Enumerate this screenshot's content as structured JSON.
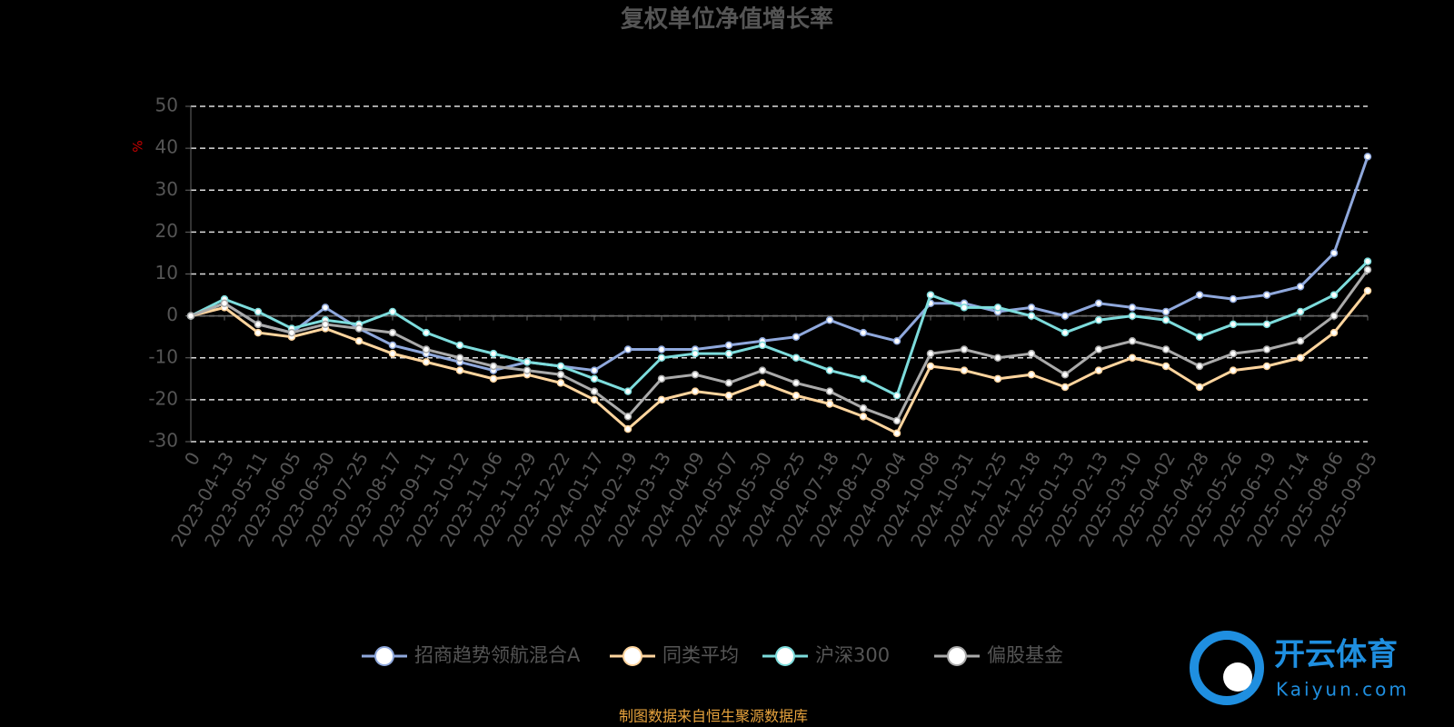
{
  "chart_data": {
    "type": "line",
    "title": "复权单位净值增长率",
    "y_axis_label": "%",
    "categories": [
      "0",
      "2023-04-13",
      "2023-05-11",
      "2023-06-05",
      "2023-06-30",
      "2023-07-25",
      "2023-08-17",
      "2023-09-11",
      "2023-10-12",
      "2023-11-06",
      "2023-11-29",
      "2023-12-22",
      "2024-01-17",
      "2024-02-19",
      "2024-03-13",
      "2024-04-09",
      "2024-05-07",
      "2024-05-30",
      "2024-06-25",
      "2024-07-18",
      "2024-08-12",
      "2024-09-04",
      "2024-10-08",
      "2024-10-31",
      "2024-11-25",
      "2024-12-18",
      "2025-01-13",
      "2025-02-13",
      "2025-03-10",
      "2025-04-02",
      "2025-04-28",
      "2025-05-26",
      "2025-06-19",
      "2025-07-14",
      "2025-08-06",
      "2025-09-03"
    ],
    "series": [
      {
        "name": "招商趋势领航混合A",
        "color": "#8fa8dc",
        "values": [
          0,
          3,
          -2,
          -4,
          2,
          -3,
          -7,
          -9,
          -11,
          -13,
          -11,
          -12,
          -13,
          -8,
          -8,
          -8,
          -7,
          -6,
          -5,
          -1,
          -4,
          -6,
          3,
          3,
          1,
          2,
          0,
          3,
          2,
          1,
          5,
          4,
          5,
          7,
          15,
          38
        ]
      },
      {
        "name": "同类平均",
        "color": "#ffd59e",
        "values": [
          0,
          2,
          -4,
          -5,
          -3,
          -6,
          -9,
          -11,
          -13,
          -15,
          -14,
          -16,
          -20,
          -27,
          -20,
          -18,
          -19,
          -16,
          -19,
          -21,
          -24,
          -28,
          -12,
          -13,
          -15,
          -14,
          -17,
          -13,
          -10,
          -12,
          -17,
          -13,
          -12,
          -10,
          -4,
          6
        ]
      },
      {
        "name": "沪深300",
        "color": "#7ddcdc",
        "values": [
          0,
          4,
          1,
          -3,
          -1,
          -2,
          1,
          -4,
          -7,
          -9,
          -11,
          -12,
          -15,
          -18,
          -10,
          -9,
          -9,
          -7,
          -10,
          -13,
          -15,
          -19,
          5,
          2,
          2,
          0,
          -4,
          -1,
          0,
          -1,
          -5,
          -2,
          -2,
          1,
          5,
          13
        ]
      },
      {
        "name": "偏股基金",
        "color": "#aaaaaa",
        "values": [
          0,
          3,
          -2,
          -4,
          -2,
          -3,
          -4,
          -8,
          -10,
          -12,
          -13,
          -14,
          -18,
          -24,
          -15,
          -14,
          -16,
          -13,
          -16,
          -18,
          -22,
          -25,
          -9,
          -8,
          -10,
          -9,
          -14,
          -8,
          -6,
          -8,
          -12,
          -9,
          -8,
          -6,
          0,
          11
        ]
      }
    ],
    "ylim": [
      -30,
      50
    ],
    "yticks": [
      -30,
      -20,
      -10,
      0,
      10,
      20,
      30,
      40,
      50
    ],
    "grid": true,
    "legend": "bottom",
    "source": "制图数据来自恒生聚源数据库"
  },
  "watermark": {
    "name": "开云体育",
    "url": "Kaiyun.com"
  }
}
